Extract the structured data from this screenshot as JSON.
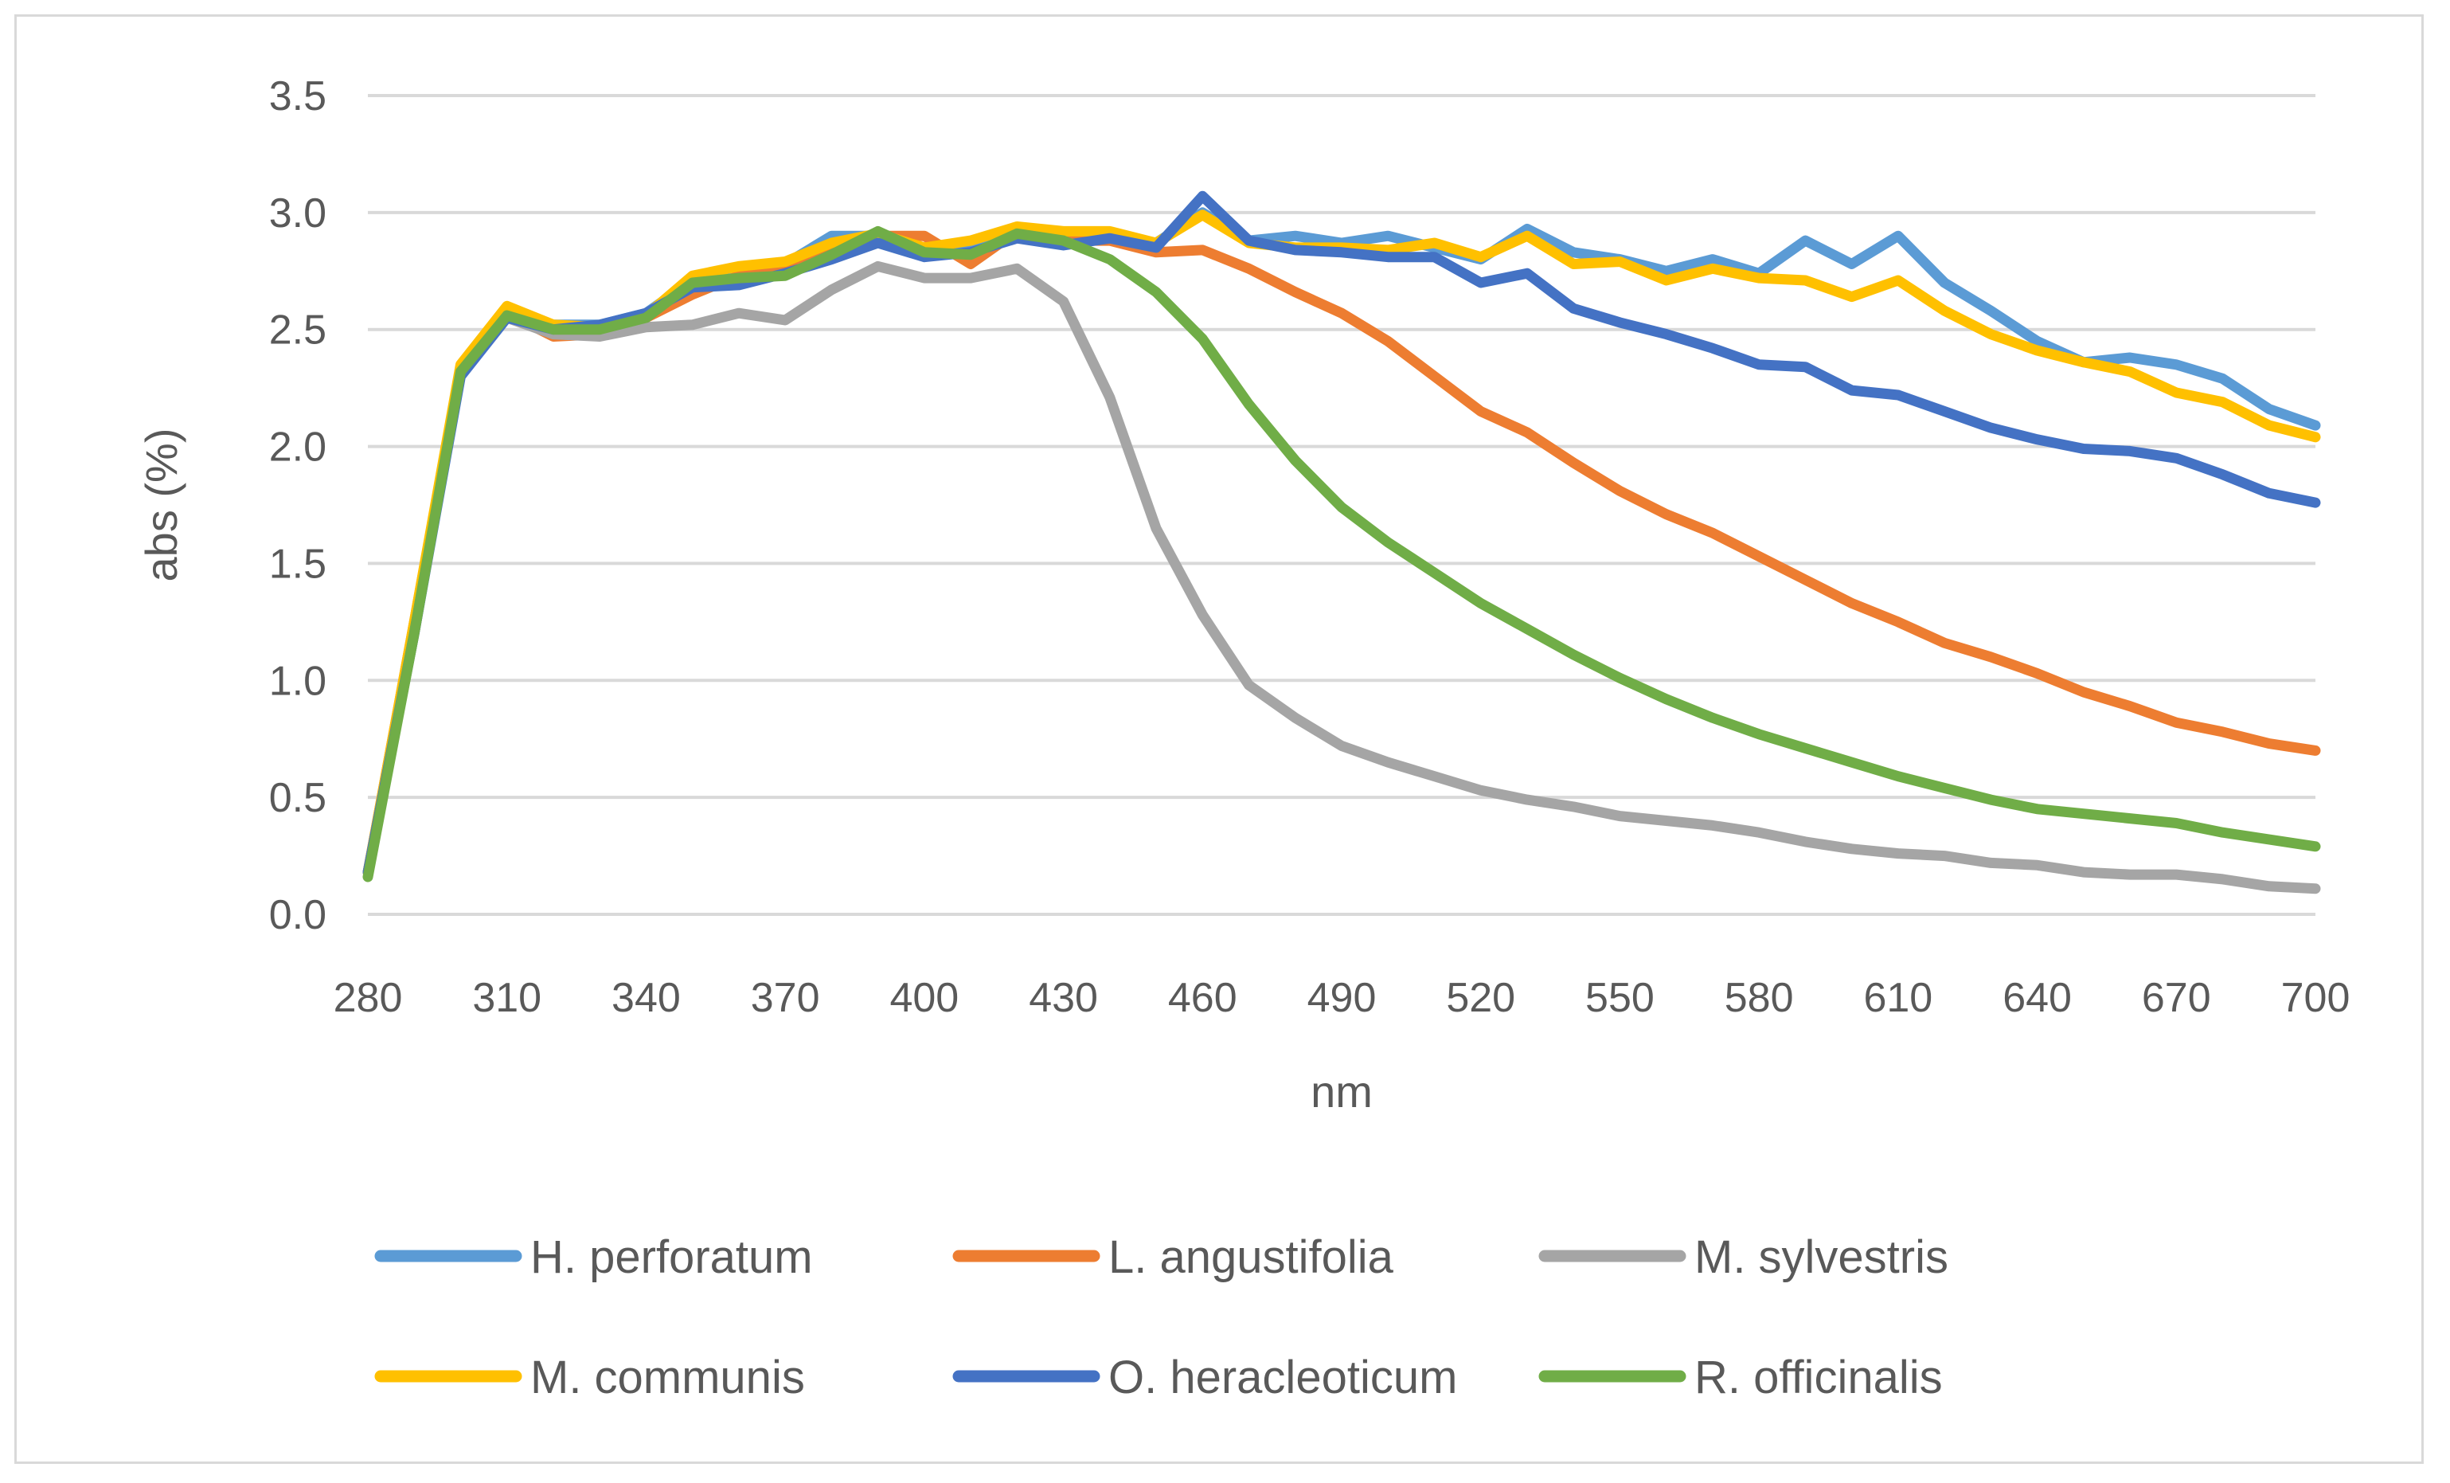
{
  "chart_data": {
    "type": "line",
    "title": "",
    "xlabel": "nm",
    "ylabel": "abs (%)",
    "xlim": [
      280,
      700
    ],
    "ylim": [
      0,
      3.5
    ],
    "x_ticks": [
      "280",
      "310",
      "340",
      "370",
      "400",
      "430",
      "460",
      "490",
      "520",
      "550",
      "580",
      "610",
      "640",
      "670",
      "700"
    ],
    "y_ticks": [
      "0.0",
      "0.5",
      "1.0",
      "1.5",
      "2.0",
      "2.5",
      "3.0",
      "3.5"
    ],
    "grid": true,
    "legend_position": "bottom",
    "x": [
      280,
      290,
      300,
      310,
      320,
      330,
      340,
      350,
      360,
      370,
      380,
      390,
      400,
      410,
      420,
      430,
      440,
      450,
      460,
      470,
      480,
      490,
      500,
      510,
      520,
      530,
      540,
      550,
      560,
      570,
      580,
      590,
      600,
      610,
      620,
      630,
      640,
      650,
      660,
      670,
      680,
      690,
      700
    ],
    "series": [
      {
        "name": "H. perforatum",
        "color": "#5B9BD5",
        "values": [
          0.18,
          1.2,
          2.33,
          2.57,
          2.52,
          2.52,
          2.57,
          2.71,
          2.72,
          2.78,
          2.9,
          2.9,
          2.82,
          2.86,
          2.92,
          2.87,
          2.91,
          2.87,
          3.0,
          2.88,
          2.9,
          2.87,
          2.9,
          2.85,
          2.8,
          2.93,
          2.83,
          2.8,
          2.75,
          2.8,
          2.74,
          2.88,
          2.78,
          2.9,
          2.7,
          2.58,
          2.45,
          2.36,
          2.38,
          2.35,
          2.29,
          2.16,
          2.09
        ]
      },
      {
        "name": "L. angustifolia",
        "color": "#ED7D31",
        "values": [
          0.18,
          1.25,
          2.33,
          2.57,
          2.47,
          2.48,
          2.55,
          2.65,
          2.73,
          2.76,
          2.83,
          2.9,
          2.9,
          2.78,
          2.92,
          2.88,
          2.88,
          2.83,
          2.84,
          2.76,
          2.66,
          2.57,
          2.45,
          2.3,
          2.15,
          2.06,
          1.93,
          1.81,
          1.71,
          1.63,
          1.53,
          1.43,
          1.33,
          1.25,
          1.16,
          1.1,
          1.03,
          0.95,
          0.89,
          0.82,
          0.78,
          0.73,
          0.7
        ]
      },
      {
        "name": "M. sylvestris",
        "color": "#A5A5A5",
        "values": [
          0.18,
          1.2,
          2.33,
          2.55,
          2.48,
          2.47,
          2.51,
          2.52,
          2.57,
          2.54,
          2.67,
          2.77,
          2.72,
          2.72,
          2.76,
          2.62,
          2.21,
          1.65,
          1.28,
          0.98,
          0.84,
          0.72,
          0.65,
          0.59,
          0.53,
          0.49,
          0.46,
          0.42,
          0.4,
          0.38,
          0.35,
          0.31,
          0.28,
          0.26,
          0.25,
          0.22,
          0.21,
          0.18,
          0.17,
          0.17,
          0.15,
          0.12,
          0.11
        ]
      },
      {
        "name": "M. communis",
        "color": "#FFC000",
        "values": [
          0.18,
          1.25,
          2.35,
          2.6,
          2.52,
          2.51,
          2.56,
          2.73,
          2.77,
          2.79,
          2.87,
          2.91,
          2.85,
          2.88,
          2.94,
          2.92,
          2.92,
          2.87,
          2.99,
          2.87,
          2.85,
          2.85,
          2.84,
          2.87,
          2.81,
          2.9,
          2.78,
          2.79,
          2.71,
          2.76,
          2.72,
          2.71,
          2.64,
          2.71,
          2.58,
          2.48,
          2.41,
          2.36,
          2.32,
          2.23,
          2.19,
          2.09,
          2.04
        ]
      },
      {
        "name": "O. heracleoticum",
        "color": "#4472C4",
        "values": [
          0.18,
          1.2,
          2.3,
          2.55,
          2.5,
          2.52,
          2.57,
          2.68,
          2.69,
          2.74,
          2.8,
          2.87,
          2.81,
          2.83,
          2.89,
          2.86,
          2.89,
          2.85,
          3.07,
          2.88,
          2.84,
          2.83,
          2.81,
          2.81,
          2.7,
          2.74,
          2.59,
          2.53,
          2.48,
          2.42,
          2.35,
          2.34,
          2.24,
          2.22,
          2.15,
          2.08,
          2.03,
          1.99,
          1.98,
          1.95,
          1.88,
          1.8,
          1.76
        ]
      },
      {
        "name": "R. officinalis",
        "color": "#70AD47",
        "values": [
          0.16,
          1.2,
          2.32,
          2.56,
          2.5,
          2.5,
          2.55,
          2.7,
          2.72,
          2.73,
          2.82,
          2.92,
          2.83,
          2.82,
          2.91,
          2.88,
          2.8,
          2.66,
          2.46,
          2.18,
          1.94,
          1.74,
          1.59,
          1.46,
          1.33,
          1.22,
          1.11,
          1.01,
          0.92,
          0.84,
          0.77,
          0.71,
          0.65,
          0.59,
          0.54,
          0.49,
          0.45,
          0.43,
          0.41,
          0.39,
          0.35,
          0.32,
          0.29
        ]
      }
    ]
  }
}
